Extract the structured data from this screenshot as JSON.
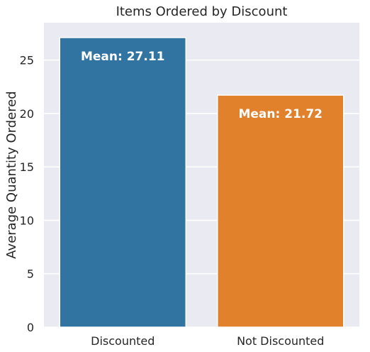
{
  "chart_data": {
    "type": "bar",
    "title": "Items Ordered by Discount",
    "xlabel": "",
    "ylabel": "Average Quantity Ordered",
    "categories": [
      "Discounted",
      "Not Discounted"
    ],
    "values": [
      27.11,
      21.72
    ],
    "annotations": [
      "Mean: 27.11",
      "Mean: 21.72"
    ],
    "colors": [
      "#3274a1",
      "#e1812c"
    ],
    "ylim": [
      0,
      28.5
    ],
    "yticks": [
      0,
      5,
      10,
      15,
      20,
      25
    ],
    "grid": true,
    "legend": "none",
    "background": "#eaeaf2"
  }
}
